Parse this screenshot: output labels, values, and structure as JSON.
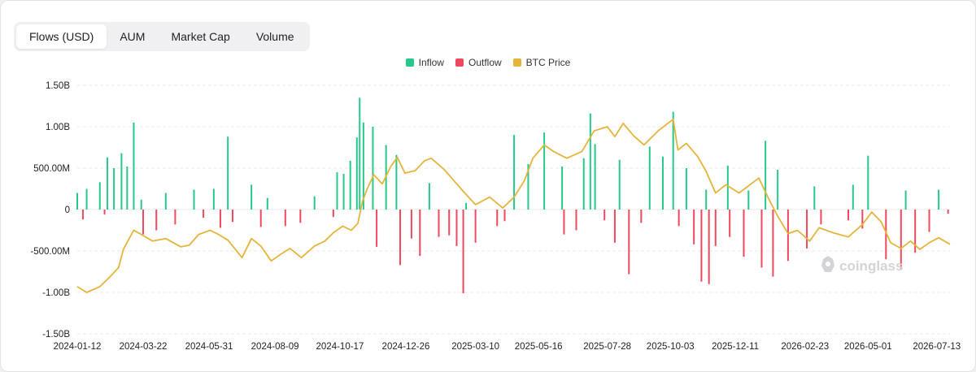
{
  "tabs": [
    {
      "label": "Flows (USD)",
      "active": true
    },
    {
      "label": "AUM",
      "active": false
    },
    {
      "label": "Market Cap",
      "active": false
    },
    {
      "label": "Volume",
      "active": false
    }
  ],
  "watermark": "coinglass",
  "colors": {
    "inflow": "#26c98a",
    "outflow": "#f0495f",
    "btc_price": "#e5b53b",
    "grid": "#e8e8ec"
  },
  "chart_data": {
    "type": "bar",
    "legend": [
      {
        "name": "Inflow",
        "color": "#26c98a"
      },
      {
        "name": "Outflow",
        "color": "#f0495f"
      },
      {
        "name": "BTC Price",
        "color": "#e5b53b"
      }
    ],
    "legend_position": "top-center",
    "grid": true,
    "ylim": [
      -1500000000,
      1500000000
    ],
    "yticks": [
      {
        "value": 1500000000,
        "label": "1.50B"
      },
      {
        "value": 1000000000,
        "label": "1.00B"
      },
      {
        "value": 500000000,
        "label": "500.00M"
      },
      {
        "value": 0,
        "label": "0"
      },
      {
        "value": -500000000,
        "label": "-500.00M"
      },
      {
        "value": -1000000000,
        "label": "-1.00B"
      },
      {
        "value": -1500000000,
        "label": "-1.50B"
      }
    ],
    "xticks": [
      "2024-01-12",
      "2024-03-22",
      "2024-05-31",
      "2024-08-09",
      "2024-10-17",
      "2024-12-26",
      "2025-03-10",
      "2025-05-16",
      "2025-07-28",
      "2025-10-03",
      "2025-12-11",
      "2026-02-23",
      "2026-05-01",
      "2026-07-13"
    ],
    "x_start": "2024-01-12",
    "x_end": "2026-07-27",
    "series": [
      {
        "name": "Inflow",
        "kind": "bar",
        "points": [
          [
            "2024-01-12",
            200000000
          ],
          [
            "2024-01-22",
            250000000
          ],
          [
            "2024-02-05",
            330000000
          ],
          [
            "2024-02-13",
            630000000
          ],
          [
            "2024-02-20",
            500000000
          ],
          [
            "2024-02-28",
            680000000
          ],
          [
            "2024-03-05",
            520000000
          ],
          [
            "2024-03-12",
            1050000000
          ],
          [
            "2024-03-20",
            120000000
          ],
          [
            "2024-04-15",
            200000000
          ],
          [
            "2024-05-15",
            240000000
          ],
          [
            "2024-06-05",
            250000000
          ],
          [
            "2024-06-20",
            880000000
          ],
          [
            "2024-07-15",
            300000000
          ],
          [
            "2024-08-01",
            140000000
          ],
          [
            "2024-09-20",
            160000000
          ],
          [
            "2024-10-14",
            450000000
          ],
          [
            "2024-10-21",
            430000000
          ],
          [
            "2024-10-28",
            590000000
          ],
          [
            "2024-11-04",
            870000000
          ],
          [
            "2024-11-07",
            1350000000
          ],
          [
            "2024-11-11",
            1050000000
          ],
          [
            "2024-11-21",
            1000000000
          ],
          [
            "2024-12-05",
            780000000
          ],
          [
            "2024-12-16",
            660000000
          ],
          [
            "2025-01-20",
            320000000
          ],
          [
            "2025-02-28",
            80000000
          ],
          [
            "2025-04-20",
            900000000
          ],
          [
            "2025-05-05",
            550000000
          ],
          [
            "2025-05-22",
            930000000
          ],
          [
            "2025-06-10",
            520000000
          ],
          [
            "2025-07-03",
            620000000
          ],
          [
            "2025-07-10",
            1160000000
          ],
          [
            "2025-07-15",
            790000000
          ],
          [
            "2025-08-10",
            600000000
          ],
          [
            "2025-09-11",
            760000000
          ],
          [
            "2025-09-25",
            640000000
          ],
          [
            "2025-10-06",
            1180000000
          ],
          [
            "2025-10-20",
            500000000
          ],
          [
            "2025-11-10",
            240000000
          ],
          [
            "2025-12-03",
            530000000
          ],
          [
            "2025-12-25",
            230000000
          ],
          [
            "2026-01-12",
            830000000
          ],
          [
            "2026-01-25",
            480000000
          ],
          [
            "2026-03-05",
            280000000
          ],
          [
            "2026-04-15",
            300000000
          ],
          [
            "2026-05-01",
            650000000
          ],
          [
            "2026-06-10",
            230000000
          ],
          [
            "2026-07-15",
            240000000
          ]
        ]
      },
      {
        "name": "Outflow",
        "kind": "bar",
        "points": [
          [
            "2024-01-18",
            -120000000
          ],
          [
            "2024-02-10",
            -60000000
          ],
          [
            "2024-03-22",
            -300000000
          ],
          [
            "2024-04-05",
            -250000000
          ],
          [
            "2024-04-25",
            -180000000
          ],
          [
            "2024-05-25",
            -100000000
          ],
          [
            "2024-06-12",
            -220000000
          ],
          [
            "2024-06-25",
            -150000000
          ],
          [
            "2024-07-25",
            -210000000
          ],
          [
            "2024-08-20",
            -200000000
          ],
          [
            "2024-09-05",
            -160000000
          ],
          [
            "2024-10-10",
            -90000000
          ],
          [
            "2024-11-25",
            -450000000
          ],
          [
            "2024-12-20",
            -670000000
          ],
          [
            "2025-01-01",
            -350000000
          ],
          [
            "2025-01-10",
            -560000000
          ],
          [
            "2025-01-30",
            -330000000
          ],
          [
            "2025-02-10",
            -310000000
          ],
          [
            "2025-02-18",
            -440000000
          ],
          [
            "2025-02-25",
            -1010000000
          ],
          [
            "2025-03-10",
            -400000000
          ],
          [
            "2025-04-02",
            -200000000
          ],
          [
            "2025-04-10",
            -140000000
          ],
          [
            "2025-06-12",
            -300000000
          ],
          [
            "2025-06-25",
            -250000000
          ],
          [
            "2025-07-25",
            -130000000
          ],
          [
            "2025-08-05",
            -400000000
          ],
          [
            "2025-08-20",
            -780000000
          ],
          [
            "2025-09-02",
            -160000000
          ],
          [
            "2025-10-12",
            -200000000
          ],
          [
            "2025-10-28",
            -420000000
          ],
          [
            "2025-11-05",
            -870000000
          ],
          [
            "2025-11-13",
            -900000000
          ],
          [
            "2025-11-20",
            -440000000
          ],
          [
            "2025-12-05",
            -330000000
          ],
          [
            "2025-12-20",
            -570000000
          ],
          [
            "2026-01-08",
            -700000000
          ],
          [
            "2026-01-20",
            -810000000
          ],
          [
            "2026-02-05",
            -620000000
          ],
          [
            "2026-02-25",
            -470000000
          ],
          [
            "2026-03-12",
            -180000000
          ],
          [
            "2026-04-10",
            -130000000
          ],
          [
            "2026-04-25",
            -230000000
          ],
          [
            "2026-05-20",
            -600000000
          ],
          [
            "2026-06-05",
            -720000000
          ],
          [
            "2026-06-20",
            -520000000
          ],
          [
            "2026-07-05",
            -270000000
          ],
          [
            "2026-07-25",
            -50000000
          ]
        ]
      },
      {
        "name": "BTC Price",
        "kind": "line",
        "axis": "unlabeled",
        "points": [
          [
            "2024-01-12",
            -930000000
          ],
          [
            "2024-01-22",
            -1000000000
          ],
          [
            "2024-02-05",
            -930000000
          ],
          [
            "2024-02-15",
            -820000000
          ],
          [
            "2024-02-25",
            -700000000
          ],
          [
            "2024-03-01",
            -480000000
          ],
          [
            "2024-03-12",
            -250000000
          ],
          [
            "2024-03-20",
            -300000000
          ],
          [
            "2024-04-01",
            -380000000
          ],
          [
            "2024-04-15",
            -350000000
          ],
          [
            "2024-05-01",
            -450000000
          ],
          [
            "2024-05-10",
            -430000000
          ],
          [
            "2024-05-20",
            -300000000
          ],
          [
            "2024-06-01",
            -250000000
          ],
          [
            "2024-06-10",
            -300000000
          ],
          [
            "2024-06-20",
            -370000000
          ],
          [
            "2024-07-05",
            -580000000
          ],
          [
            "2024-07-15",
            -350000000
          ],
          [
            "2024-07-25",
            -440000000
          ],
          [
            "2024-08-05",
            -620000000
          ],
          [
            "2024-08-15",
            -540000000
          ],
          [
            "2024-08-25",
            -470000000
          ],
          [
            "2024-09-06",
            -580000000
          ],
          [
            "2024-09-20",
            -440000000
          ],
          [
            "2024-10-01",
            -380000000
          ],
          [
            "2024-10-10",
            -280000000
          ],
          [
            "2024-10-20",
            -200000000
          ],
          [
            "2024-10-29",
            -250000000
          ],
          [
            "2024-11-05",
            -170000000
          ],
          [
            "2024-11-10",
            100000000
          ],
          [
            "2024-11-15",
            250000000
          ],
          [
            "2024-11-22",
            420000000
          ],
          [
            "2024-12-01",
            310000000
          ],
          [
            "2024-12-10",
            520000000
          ],
          [
            "2024-12-17",
            630000000
          ],
          [
            "2024-12-25",
            440000000
          ],
          [
            "2025-01-05",
            470000000
          ],
          [
            "2025-01-15",
            590000000
          ],
          [
            "2025-01-22",
            620000000
          ],
          [
            "2025-02-05",
            480000000
          ],
          [
            "2025-02-15",
            350000000
          ],
          [
            "2025-02-25",
            220000000
          ],
          [
            "2025-03-10",
            60000000
          ],
          [
            "2025-03-25",
            150000000
          ],
          [
            "2025-04-08",
            20000000
          ],
          [
            "2025-04-20",
            150000000
          ],
          [
            "2025-05-01",
            350000000
          ],
          [
            "2025-05-10",
            620000000
          ],
          [
            "2025-05-22",
            780000000
          ],
          [
            "2025-06-01",
            700000000
          ],
          [
            "2025-06-15",
            620000000
          ],
          [
            "2025-07-01",
            700000000
          ],
          [
            "2025-07-14",
            950000000
          ],
          [
            "2025-07-28",
            1000000000
          ],
          [
            "2025-08-05",
            880000000
          ],
          [
            "2025-08-14",
            1040000000
          ],
          [
            "2025-08-25",
            890000000
          ],
          [
            "2025-09-05",
            780000000
          ],
          [
            "2025-09-20",
            950000000
          ],
          [
            "2025-10-06",
            1090000000
          ],
          [
            "2025-10-11",
            720000000
          ],
          [
            "2025-10-20",
            800000000
          ],
          [
            "2025-11-01",
            640000000
          ],
          [
            "2025-11-10",
            460000000
          ],
          [
            "2025-11-20",
            200000000
          ],
          [
            "2025-12-01",
            300000000
          ],
          [
            "2025-12-15",
            200000000
          ],
          [
            "2026-01-05",
            380000000
          ],
          [
            "2026-01-15",
            140000000
          ],
          [
            "2026-01-25",
            -80000000
          ],
          [
            "2026-02-05",
            -290000000
          ],
          [
            "2026-02-15",
            -250000000
          ],
          [
            "2026-02-28",
            -380000000
          ],
          [
            "2026-03-10",
            -220000000
          ],
          [
            "2026-03-25",
            -280000000
          ],
          [
            "2026-04-10",
            -330000000
          ],
          [
            "2026-04-25",
            -180000000
          ],
          [
            "2026-05-05",
            -30000000
          ],
          [
            "2026-05-15",
            -150000000
          ],
          [
            "2026-05-25",
            -400000000
          ],
          [
            "2026-06-05",
            -470000000
          ],
          [
            "2026-06-15",
            -380000000
          ],
          [
            "2026-06-25",
            -480000000
          ],
          [
            "2026-07-05",
            -400000000
          ],
          [
            "2026-07-15",
            -340000000
          ],
          [
            "2026-07-27",
            -420000000
          ]
        ]
      }
    ]
  }
}
